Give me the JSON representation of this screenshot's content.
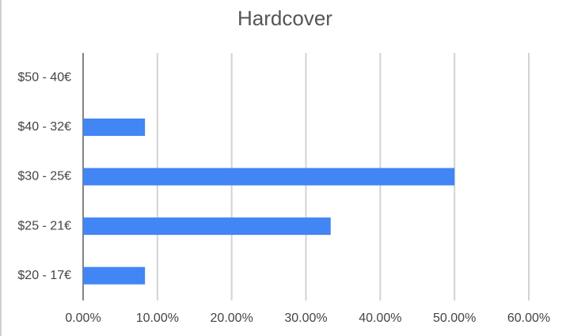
{
  "chart_data": {
    "type": "bar",
    "orientation": "horizontal",
    "title": "Hardcover",
    "categories": [
      "$50 - 40€",
      "$40 - 32€",
      "$30 - 25€",
      "$25 - 21€",
      "$20 - 17€"
    ],
    "values": [
      0,
      8.33,
      50,
      33.33,
      8.33
    ],
    "color": "#4285f4",
    "xlim": [
      0,
      60
    ],
    "xticks": [
      {
        "value": 0,
        "label": "0.00%"
      },
      {
        "value": 10,
        "label": "10.00%"
      },
      {
        "value": 20,
        "label": "20.00%"
      },
      {
        "value": 30,
        "label": "30.00%"
      },
      {
        "value": 40,
        "label": "40.00%"
      },
      {
        "value": 50,
        "label": "50.00%"
      },
      {
        "value": 60,
        "label": "60.00%"
      }
    ],
    "grid": true
  }
}
